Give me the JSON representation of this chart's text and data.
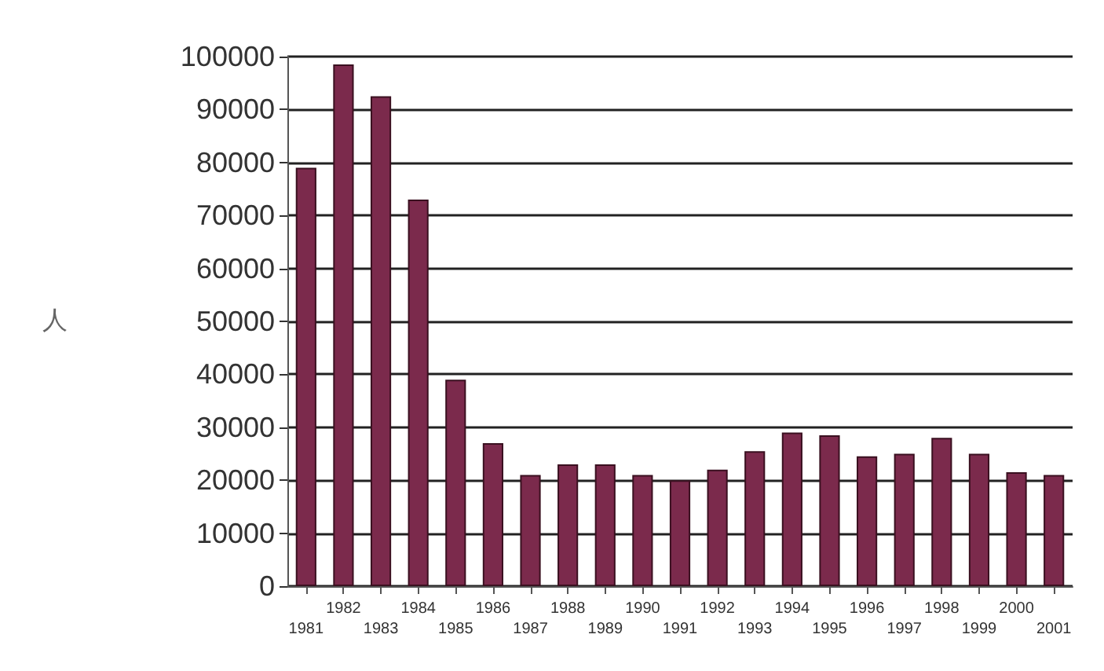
{
  "chart_data": {
    "type": "bar",
    "ylabel": "人",
    "categories": [
      "1981",
      "1982",
      "1983",
      "1984",
      "1985",
      "1986",
      "1987",
      "1988",
      "1989",
      "1990",
      "1991",
      "1992",
      "1993",
      "1994",
      "1995",
      "1996",
      "1997",
      "1998",
      "1999",
      "2000",
      "2001"
    ],
    "values": [
      79000,
      98500,
      92500,
      73000,
      39000,
      27000,
      21000,
      23000,
      23000,
      21000,
      20000,
      22000,
      25500,
      29000,
      28500,
      24500,
      25000,
      28000,
      25000,
      21500,
      21000
    ],
    "color": "#7b2a4c",
    "ylim": [
      0,
      100000
    ],
    "yticks": [
      0,
      10000,
      20000,
      30000,
      40000,
      50000,
      60000,
      70000,
      80000,
      90000,
      100000
    ],
    "grid": "y"
  }
}
